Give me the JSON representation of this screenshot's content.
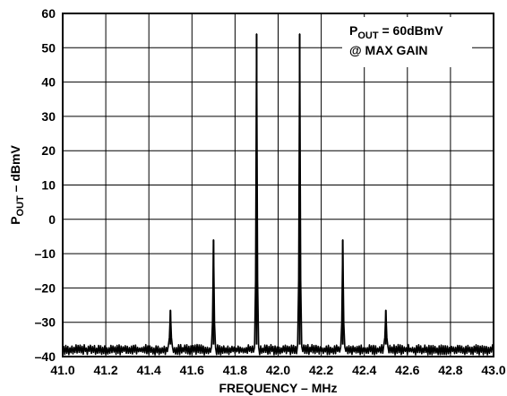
{
  "chart_data": {
    "type": "line",
    "xlabel": "FREQUENCY – MHz",
    "ylabel": {
      "p": "P",
      "sub": "OUT",
      "rest": " – dBmV"
    },
    "xlim": [
      41.0,
      43.0
    ],
    "ylim": [
      -40,
      60
    ],
    "x_ticks": [
      41.0,
      41.2,
      41.4,
      41.6,
      41.8,
      42.0,
      42.2,
      42.4,
      42.6,
      42.8,
      43.0
    ],
    "x_tick_labels": [
      "41.0",
      "41.2",
      "41.4",
      "41.6",
      "41.8",
      "42.0",
      "42.2",
      "42.4",
      "42.6",
      "42.8",
      "43.0"
    ],
    "y_ticks": [
      60,
      50,
      40,
      30,
      20,
      10,
      0,
      -10,
      -20,
      -30,
      -40
    ],
    "y_tick_labels": [
      "60",
      "50",
      "40",
      "30",
      "20",
      "10",
      "0",
      "–10",
      "–20",
      "–30",
      "–40"
    ],
    "grid": true,
    "noise_floor": [
      -39.5,
      -36.5
    ],
    "series": [
      {
        "peaks": [
          {
            "x": 41.5,
            "y": -26.5
          },
          {
            "x": 41.7,
            "y": -6
          },
          {
            "x": 41.9,
            "y": 54
          },
          {
            "x": 42.1,
            "y": 54
          },
          {
            "x": 42.3,
            "y": -6
          },
          {
            "x": 42.5,
            "y": -26.5
          }
        ]
      }
    ],
    "annotation": {
      "line1_p": "P",
      "line1_sub": "OUT",
      "line1_rest": " = 60dBmV",
      "line2": "@ MAX GAIN",
      "position": "top-right"
    }
  }
}
